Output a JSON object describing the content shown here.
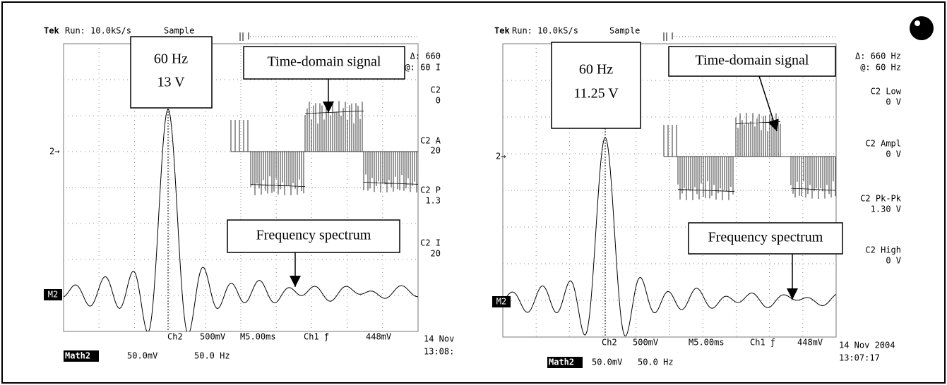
{
  "panels": [
    {
      "header": [
        "Tek",
        "Run: 10.0kS/s",
        "Sample"
      ],
      "peak_callout": [
        "60 Hz",
        "13 V"
      ],
      "time_callout": "Time-domain signal",
      "freq_callout": "Frequency spectrum",
      "channel_marker": "2→",
      "math_marker": "M2",
      "measurements": [
        "Δ: 660",
        "@: 60 I",
        "C2",
        "0",
        "C2 A",
        "20",
        "C2 P",
        "1.3",
        "C2 I",
        "20"
      ],
      "footer": [
        "Ch2",
        "500mV",
        "M5.00ms",
        "Ch1 ƒ",
        "448mV",
        "14 Nov",
        "13:08:"
      ],
      "math_row": [
        "Math2",
        "50.0mV",
        "50.0 Hz"
      ]
    },
    {
      "header": [
        "Tek",
        "Run: 10.0kS/s",
        "Sample"
      ],
      "peak_callout": [
        "60 Hz",
        "11.25 V"
      ],
      "time_callout": "Time-domain signal",
      "freq_callout": "Frequency spectrum",
      "channel_marker": "2→",
      "math_marker": "M2",
      "measurements": [
        "Δ: 660 Hz",
        "@: 60 Hz",
        "C2 Low",
        "0 V",
        "C2 Ampl",
        "0 V",
        "C2 Pk-Pk",
        "1.30 V",
        "C2 High",
        "0 V"
      ],
      "footer": [
        "Ch2",
        "500mV",
        "M5.00ms",
        "Ch1 ƒ",
        "448mV",
        "14 Nov 2004",
        "13:07:17"
      ],
      "math_row": [
        "Math2",
        "50.0mV",
        "50.0 Hz"
      ]
    }
  ]
}
